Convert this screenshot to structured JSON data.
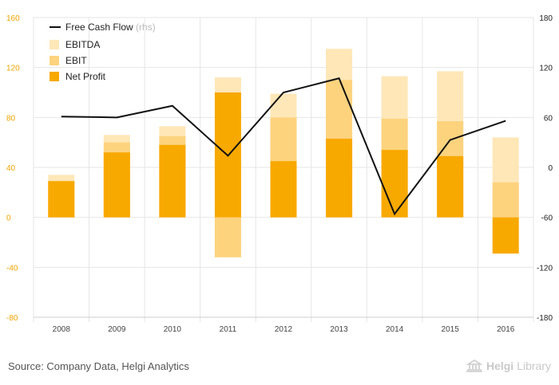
{
  "chart_data": {
    "type": "bar",
    "categories": [
      "2008",
      "2009",
      "2010",
      "2011",
      "2012",
      "2013",
      "2014",
      "2015",
      "2016"
    ],
    "series": [
      {
        "name": "EBITDA",
        "kind": "bar",
        "axis": "left",
        "color": "#ffe7b8",
        "values": [
          34,
          66,
          73,
          112,
          99,
          135,
          113,
          117,
          64
        ]
      },
      {
        "name": "EBIT",
        "kind": "bar",
        "axis": "left",
        "color": "#fdd37e",
        "values": [
          29,
          60,
          65,
          -32,
          80,
          110,
          79,
          77,
          28
        ]
      },
      {
        "name": "Net Profit",
        "kind": "bar",
        "axis": "left",
        "color": "#f8a900",
        "values": [
          29,
          52,
          58,
          100,
          45,
          63,
          54,
          49,
          -29
        ]
      },
      {
        "name": "Free Cash Flow",
        "legend_suffix": "(rhs)",
        "kind": "line",
        "axis": "right",
        "color": "#111111",
        "values": [
          61,
          60,
          74,
          14,
          90,
          107,
          -56,
          33,
          56
        ]
      }
    ],
    "left_axis": {
      "min": -80,
      "max": 160,
      "ticks": [
        "160",
        "120",
        "80",
        "40",
        "0",
        "-40",
        "-80"
      ],
      "color": "#f0a500"
    },
    "right_axis": {
      "min": -180,
      "max": 180,
      "ticks": [
        "180",
        "120",
        "60",
        "0",
        "-60",
        "-120",
        "-180"
      ],
      "color": "#222222"
    },
    "grid": true,
    "legend_position": "top-left"
  },
  "footer": {
    "source": "Source: Company Data, Helgi Analytics",
    "brand_part1": "Helgi",
    "brand_part2": "Library",
    "logo_icon": "library-building-icon"
  }
}
